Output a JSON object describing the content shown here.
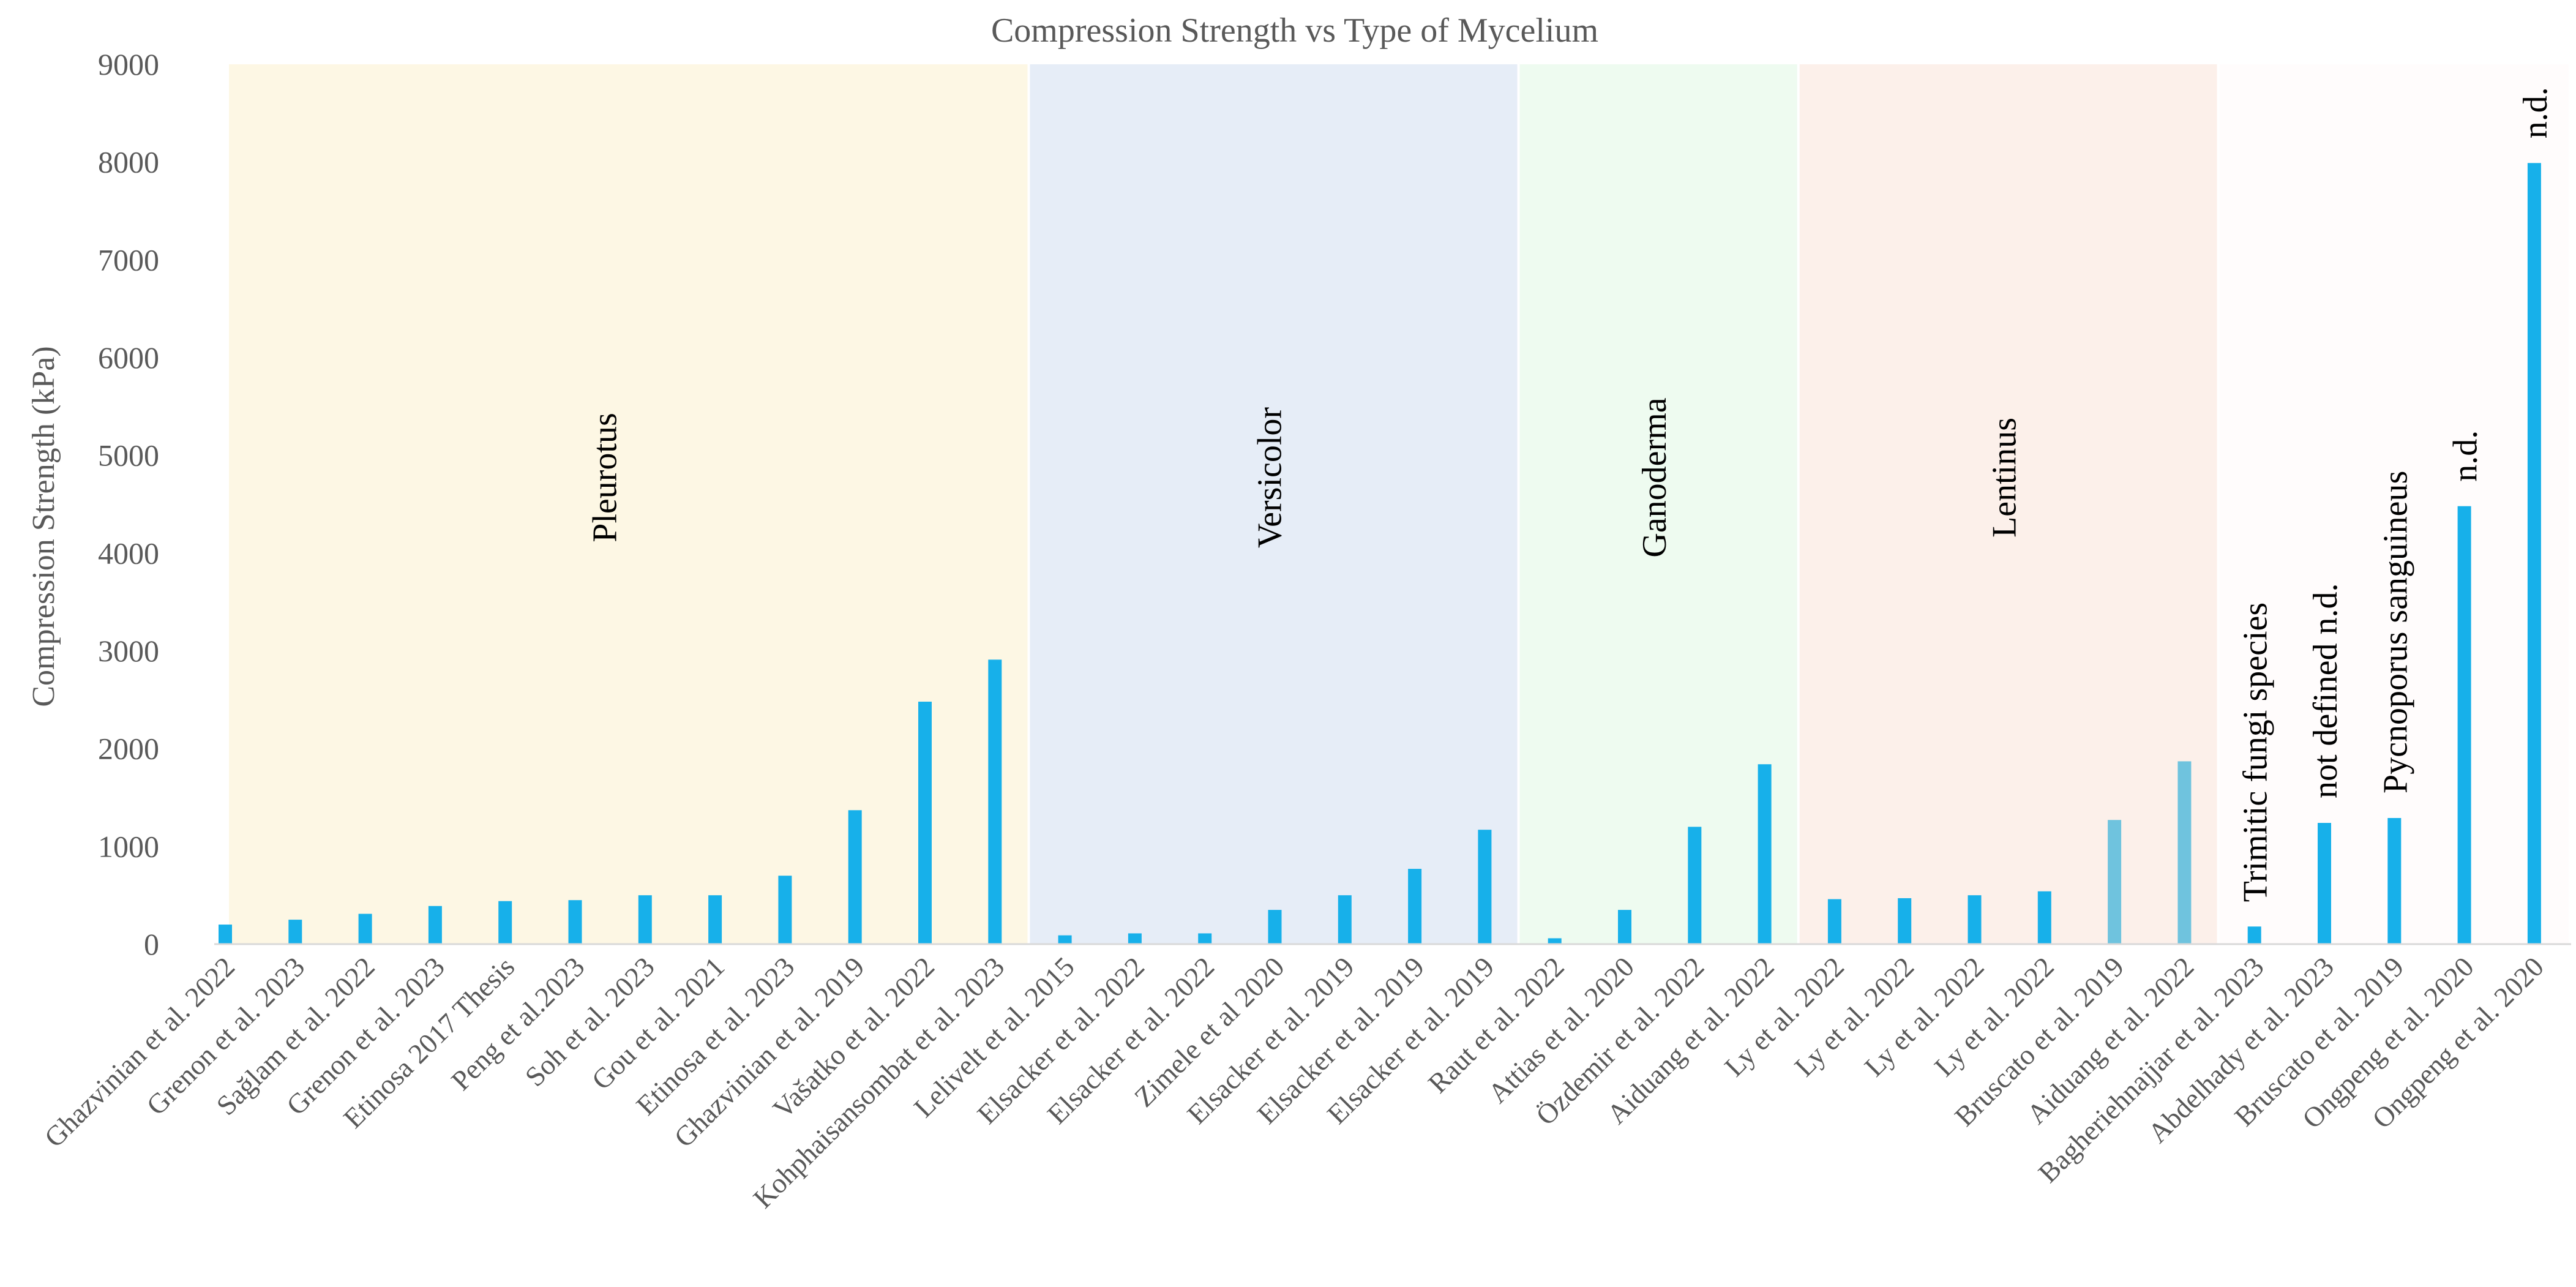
{
  "chart_data": {
    "type": "bar",
    "title": "Compression Strength vs Type of Mycelium",
    "xlabel": "",
    "ylabel": "Compression Strength (kPa)",
    "ylim": [
      0,
      9000
    ],
    "yticks": [
      0,
      1000,
      2000,
      3000,
      4000,
      5000,
      6000,
      7000,
      8000,
      9000
    ],
    "grid": false,
    "colors": {
      "bar": "#17b0ea",
      "bar_light": "#6fc3de",
      "axis": "#d9d9d9",
      "Pleurotus": "#fdf7e4",
      "Versicolor": "#e6edf7",
      "Ganoderma": "#eefbf0",
      "Lentinus": "#fcf0ea",
      "Other": "#fffcfc"
    },
    "categories": [
      "Ghazvinian et al. 2022",
      "Grenon et al. 2023",
      "Sağlam et al. 2022",
      "Grenon et al. 2023",
      "Etinosa 2017 Thesis",
      "Peng et al.2023",
      "Soh  et al. 2023",
      "Gou et al. 2021",
      "Etinosa et al. 2023",
      "Ghazvinian et al. 2019",
      "Vašatko et al. 2022",
      "Kohphaisansombat et al. 2023",
      "Lelivelt et al. 2015",
      "Elsacker et al. 2022",
      "Elsacker et al. 2022",
      "Zimele et al 2020",
      "Elsacker et al. 2019",
      "Elsacker et al. 2019",
      "Elsacker et al. 2019",
      "Raut et al. 2022",
      "Attias et al. 2020",
      "Özdemir et al. 2022",
      "Aiduang et al. 2022",
      "Ly et al. 2022",
      "Ly et al. 2022",
      "Ly et al. 2022",
      "Ly et al.  2022",
      "Bruscato et al. 2019",
      "Aiduang et al. 2022",
      "Bagheriehnajjar et al. 2023",
      "Abdelhady et al. 2023",
      "Bruscato et al. 2019",
      "Ongpeng  et al. 2020",
      "Ongpeng  et al. 2020"
    ],
    "values": [
      200,
      250,
      310,
      390,
      440,
      450,
      500,
      500,
      700,
      1370,
      2480,
      2910,
      90,
      110,
      110,
      350,
      500,
      770,
      1170,
      60,
      350,
      1200,
      1840,
      460,
      470,
      500,
      540,
      1270,
      1870,
      180,
      1240,
      1290,
      4480,
      7990
    ],
    "groups": [
      {
        "name": "Pleurotus",
        "label": "Pleurotus",
        "start": 0,
        "end": 11
      },
      {
        "name": "Versicolor",
        "label": "Versicolor",
        "start": 12,
        "end": 18
      },
      {
        "name": "Ganoderma",
        "label": "Ganoderma",
        "start": 19,
        "end": 22
      },
      {
        "name": "Lentinus",
        "label": "Lentinus",
        "start": 23,
        "end": 28
      },
      {
        "name": "Other",
        "label": "",
        "start": 29,
        "end": 33
      }
    ],
    "light_bars": [
      27,
      28
    ],
    "bar_annotations": [
      {
        "index": 29,
        "text": "Trimitic fungi species"
      },
      {
        "index": 30,
        "text": "not defined n.d."
      },
      {
        "index": 31,
        "text": "Pycnoporus sanguineus"
      },
      {
        "index": 32,
        "text": "n.d."
      },
      {
        "index": 33,
        "text": "n.d."
      }
    ]
  }
}
